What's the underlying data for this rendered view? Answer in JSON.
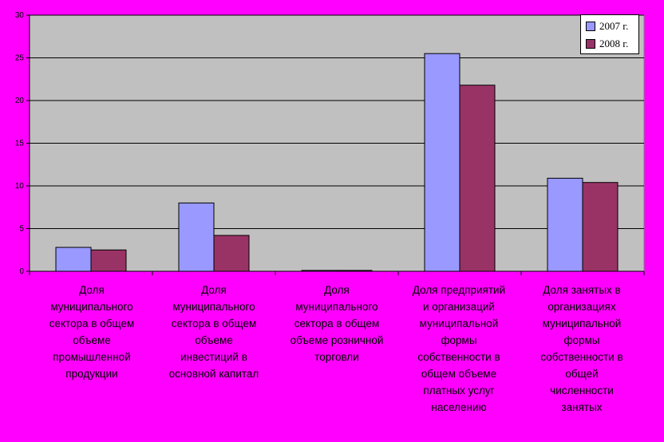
{
  "chart_data": {
    "type": "bar",
    "categories": [
      "Доля\nмуниципального\nсектора в общем\nобъеме\nпромышленной\nпродукции",
      "Доля\nмуниципального\nсектора в общем\nобъеме\nинвестиций в\nосновной капитал",
      "Доля\nмуниципального\nсектора в общем\nобъеме розничной\nторговли",
      "Доля предприятий\nи организаций\nмуниципальной\nформы\nсобственности в\nобщем объеме\nплатных услуг\nнаселению",
      "Доля занятых в\nорганизациях\nмуниципальной\nформы\nсобственности в\nобщей\nчисленности\nзанятых"
    ],
    "series": [
      {
        "name": "2007 г.",
        "values": [
          2.8,
          8.0,
          0.1,
          25.5,
          10.9
        ],
        "color": "#9999ff"
      },
      {
        "name": "2008 г.",
        "values": [
          2.5,
          4.2,
          0.1,
          21.8,
          10.4
        ],
        "color": "#993366"
      }
    ],
    "ylim": [
      0,
      30
    ],
    "yticks": [
      "0",
      "5",
      "10",
      "15",
      "20",
      "25",
      "30"
    ],
    "grid": true,
    "legend": "top-right",
    "plot_background": "#c0c0c0"
  }
}
